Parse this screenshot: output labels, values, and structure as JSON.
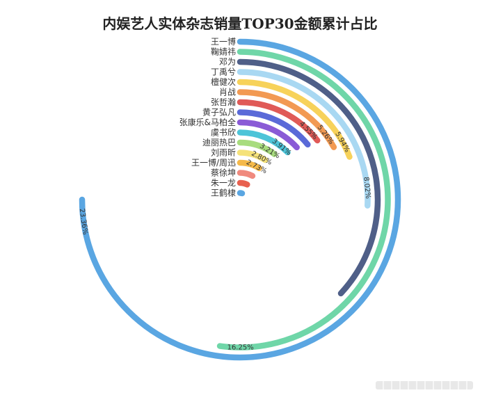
{
  "chart_data": {
    "type": "radial_bar",
    "title": "内娱艺人实体杂志销量TOP30金额累计占比",
    "categories": [
      "王一博",
      "鞠婧祎",
      "邓为",
      "丁禹兮",
      "檀健次",
      "肖战",
      "张哲瀚",
      "黄子弘凡",
      "张康乐&马柏全",
      "虞书欣",
      "迪丽热巴",
      "刘雨昕",
      "王一博/周迅",
      "蔡徐坤",
      "朱一龙",
      "王鹤棣"
    ],
    "values": [
      23.36,
      16.25,
      11.5,
      8.02,
      5.94,
      5.26,
      4.55,
      4.4,
      4.1,
      3.91,
      3.21,
      2.8,
      2.73,
      2.4,
      2.2,
      1.6
    ],
    "labels": [
      "23.36%",
      "16.25%",
      "",
      "8.02%",
      "5.94%",
      "5.26%",
      "4.55%",
      "",
      "",
      "3.91%",
      "3.21%",
      "2.80%",
      "2.73%",
      "",
      "",
      ""
    ],
    "colors": [
      "#5aa6e2",
      "#6fd6a8",
      "#4f5f88",
      "#a9d8f2",
      "#f7d25a",
      "#f29a53",
      "#e05a57",
      "#5a6ad8",
      "#8a5bd6",
      "#4dc4d8",
      "#a8dc7e",
      "#f5e27a",
      "#f5b94a",
      "#f08a7e",
      "#e8604f",
      "#5aa6e2"
    ]
  }
}
